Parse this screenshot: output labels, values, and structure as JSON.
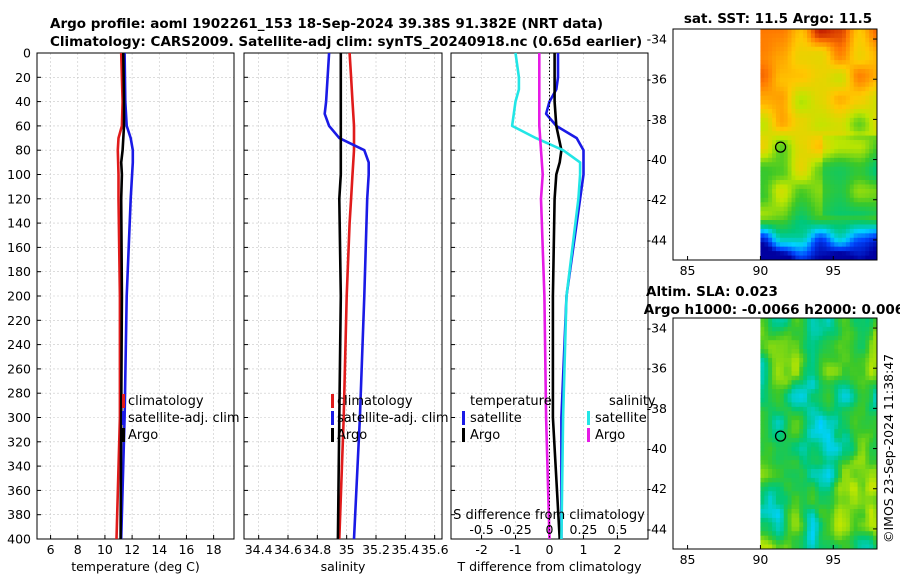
{
  "header": {
    "title_line1": "Argo profile: aoml 1902261_153 18-Sep-2024 39.38S 91.382E (NRT data)",
    "title_line2": "Climatology: CARS2009. Satellite-adj clim: synTS_20240918.nc (0.65d earlier)"
  },
  "colors": {
    "climatology": "#e01b1b",
    "satellite": "#1a1ae6",
    "argo": "#000000",
    "sat_salinity": "#22e6e6",
    "argo_salinity": "#e61ae6"
  },
  "chart_data": [
    {
      "type": "line",
      "id": "temperature",
      "xlabel": "temperature (deg C)",
      "ylabel": "",
      "xlim": [
        5,
        19.5
      ],
      "xticks": [
        6,
        8,
        10,
        12,
        14,
        16,
        18
      ],
      "ylim": [
        400,
        0
      ],
      "yticks": [
        0,
        20,
        40,
        60,
        80,
        100,
        120,
        140,
        160,
        180,
        200,
        220,
        240,
        260,
        280,
        300,
        320,
        340,
        360,
        380,
        400
      ],
      "grid": true,
      "legend": [
        "climatology",
        "satellite-adj. clim",
        "Argo"
      ],
      "series": [
        {
          "name": "climatology",
          "color": "#e01b1b",
          "depth": [
            0,
            40,
            60,
            70,
            80,
            100,
            120,
            200,
            300,
            400
          ],
          "values": [
            11.2,
            11.3,
            11.25,
            11.0,
            10.95,
            11.0,
            11.0,
            11.1,
            11.1,
            10.85
          ]
        },
        {
          "name": "satellite-adj. clim",
          "color": "#1a1ae6",
          "depth": [
            0,
            40,
            60,
            70,
            80,
            90,
            100,
            120,
            200,
            300,
            400
          ],
          "values": [
            11.45,
            11.5,
            11.6,
            11.9,
            12.05,
            12.05,
            12.0,
            11.9,
            11.6,
            11.45,
            11.2
          ]
        },
        {
          "name": "Argo",
          "color": "#000000",
          "depth": [
            0,
            40,
            60,
            70,
            80,
            90,
            100,
            120,
            200,
            300,
            400
          ],
          "values": [
            11.35,
            11.4,
            11.4,
            11.35,
            11.3,
            11.2,
            11.25,
            11.2,
            11.25,
            11.2,
            11.15
          ]
        }
      ]
    },
    {
      "type": "line",
      "id": "salinity",
      "xlabel": "salinity",
      "ylabel": "",
      "xlim": [
        34.3,
        35.65
      ],
      "xticks": [
        34.4,
        34.6,
        34.8,
        35,
        35.2,
        35.4,
        35.6
      ],
      "ylim": [
        400,
        0
      ],
      "grid": true,
      "legend": [
        "climatology",
        "satellite-adj. clim",
        "Argo"
      ],
      "series": [
        {
          "name": "climatology",
          "color": "#e01b1b",
          "depth": [
            0,
            20,
            40,
            60,
            80,
            100,
            120,
            140,
            200,
            300,
            400
          ],
          "values": [
            35.02,
            35.03,
            35.04,
            35.05,
            35.05,
            35.04,
            35.03,
            35.02,
            35.0,
            34.98,
            34.95
          ]
        },
        {
          "name": "satellite-adj. clim",
          "color": "#1a1ae6",
          "depth": [
            0,
            20,
            40,
            50,
            60,
            70,
            80,
            90,
            100,
            120,
            200,
            300,
            400
          ],
          "values": [
            34.88,
            34.87,
            34.86,
            34.85,
            34.88,
            34.95,
            35.12,
            35.15,
            35.15,
            35.14,
            35.12,
            35.09,
            35.05
          ]
        },
        {
          "name": "Argo",
          "color": "#000000",
          "depth": [
            0,
            40,
            60,
            80,
            100,
            120,
            200,
            300,
            400
          ],
          "values": [
            34.96,
            34.96,
            34.96,
            34.96,
            34.96,
            34.95,
            34.96,
            34.95,
            34.94
          ]
        }
      ]
    },
    {
      "type": "line",
      "id": "difference",
      "xlabel": "T difference from climatology",
      "ylabel": "",
      "xlim": [
        -2.9,
        2.9
      ],
      "xticks": [
        -2,
        -1,
        0,
        1,
        2
      ],
      "xlabel_top": "S difference from climatology",
      "xticks_top": [
        "-0.5",
        "-0.25",
        "0",
        "0.25",
        "0.5"
      ],
      "ylim": [
        400,
        0
      ],
      "grid": true,
      "legend": {
        "temperature_title": "temperature",
        "salinity_title": "salinity",
        "temperature_items": [
          "satellite",
          "Argo"
        ],
        "salinity_items": [
          "satellite",
          "Argo"
        ]
      },
      "series": [
        {
          "name": "T satellite",
          "color": "#1a1ae6",
          "depth": [
            0,
            20,
            30,
            40,
            50,
            60,
            70,
            80,
            90,
            100,
            120,
            200,
            300,
            400
          ],
          "values": [
            0.25,
            0.25,
            0.2,
            0.0,
            -0.1,
            0.2,
            0.8,
            1.0,
            1.0,
            1.0,
            0.9,
            0.5,
            0.35,
            0.35
          ]
        },
        {
          "name": "T Argo",
          "color": "#000000",
          "depth": [
            0,
            20,
            40,
            60,
            80,
            90,
            100,
            120,
            200,
            300,
            400
          ],
          "values": [
            0.15,
            0.15,
            0.15,
            0.2,
            0.35,
            0.3,
            0.2,
            0.15,
            0.1,
            0.1,
            0.3
          ]
        },
        {
          "name": "S satellite",
          "color": "#22e6e6",
          "depth": [
            0,
            20,
            30,
            40,
            50,
            60,
            70,
            80,
            90,
            100,
            120,
            200,
            300,
            400
          ],
          "values": [
            -1.0,
            -0.9,
            -0.9,
            -1.0,
            -1.05,
            -1.1,
            -0.4,
            0.4,
            0.9,
            0.9,
            0.85,
            0.5,
            0.4,
            0.35
          ]
        },
        {
          "name": "S Argo",
          "color": "#e61ae6",
          "depth": [
            0,
            40,
            60,
            80,
            100,
            120,
            200,
            300,
            400
          ],
          "values": [
            -0.3,
            -0.3,
            -0.3,
            -0.25,
            -0.2,
            -0.25,
            -0.15,
            -0.1,
            0.0
          ]
        }
      ]
    },
    {
      "type": "heatmap",
      "id": "sst_map",
      "title": "sat. SST: 11.5 Argo: 11.5",
      "xlim": [
        84,
        98
      ],
      "ylim": [
        -45,
        -33.5
      ],
      "xticks": [
        85,
        90,
        95
      ],
      "yticks": [
        -34,
        -36,
        -38,
        -40,
        -42,
        -44
      ],
      "data_xrange": [
        90,
        98
      ],
      "marker": {
        "lon": 91.382,
        "lat": -39.38
      }
    },
    {
      "type": "heatmap",
      "id": "sla_map",
      "title": "Altim. SLA: 0.023",
      "subtitle": "Argo h1000: -0.0066 h2000: 0.006",
      "xlim": [
        84,
        98
      ],
      "ylim": [
        -45,
        -33.5
      ],
      "xticks": [
        85,
        90,
        95
      ],
      "yticks": [
        -34,
        -36,
        -38,
        -40,
        -42,
        -44
      ],
      "data_xrange": [
        90,
        98
      ],
      "marker": {
        "lon": 91.382,
        "lat": -39.38
      }
    }
  ],
  "footer": {
    "stamp": "©IMOS 23-Sep-2024 11:38:47"
  }
}
